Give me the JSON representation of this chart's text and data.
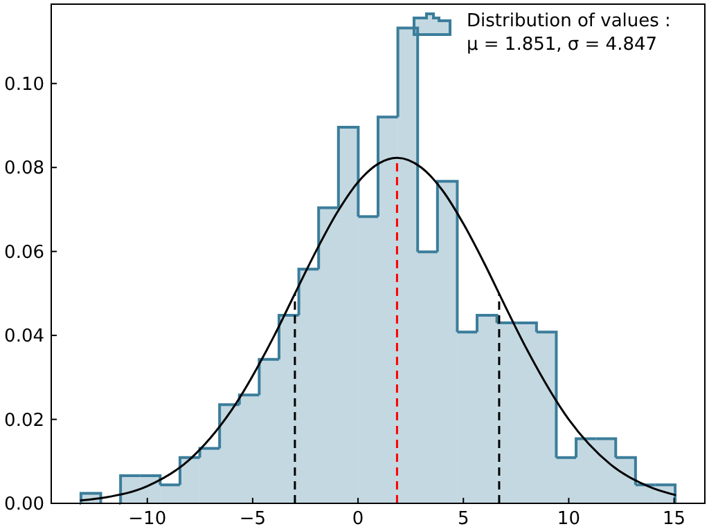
{
  "chart_data": {
    "type": "histogram",
    "bins": [
      -13.15,
      -12.21,
      -11.27,
      -10.33,
      -9.39,
      -8.45,
      -7.51,
      -6.57,
      -5.63,
      -4.69,
      -3.75,
      -2.81,
      -1.87,
      -0.93,
      0.01,
      0.95,
      1.89,
      2.83,
      3.77,
      4.71,
      5.65,
      6.59,
      7.53,
      8.47,
      9.41,
      10.35,
      11.29,
      12.23,
      13.17,
      14.11,
      15.05
    ],
    "series": [
      {
        "name": "Distribution of values :\nμ = 1.851, σ = 4.847",
        "color": "#3b7d9b",
        "values": [
          0.0024,
          0,
          0.0066,
          0.0066,
          0.0044,
          0.0109,
          0.0131,
          0.0235,
          0.0258,
          0.0343,
          0.0448,
          0.0558,
          0.0704,
          0.0896,
          0.0683,
          0.092,
          0.1132,
          0.0599,
          0.0767,
          0.0408,
          0.0448,
          0.043,
          0.043,
          0.0408,
          0.0109,
          0.0154,
          0.0154,
          0.0109,
          0.0044,
          0.0044
        ]
      },
      {
        "type": "line",
        "color": "#000000",
        "x": [
          -13.15,
          -12,
          -10,
          -8,
          -6,
          -4,
          -3,
          -2,
          -1,
          0,
          1,
          1.851,
          3,
          4,
          5,
          6,
          7,
          8,
          10,
          12,
          14,
          15.05
        ],
        "values": [
          0.0007,
          0.0014,
          0.0041,
          0.0104,
          0.0222,
          0.0397,
          0.0499,
          0.06,
          0.0692,
          0.0765,
          0.081,
          0.0823,
          0.08,
          0.0746,
          0.0666,
          0.0571,
          0.0468,
          0.0368,
          0.02,
          0.0092,
          0.0036,
          0.002
        ]
      }
    ],
    "ref_lines": [
      {
        "axis": "x",
        "value": 1.851,
        "color": "#ff0000",
        "line_style": "dashed"
      },
      {
        "axis": "x",
        "value": -2.996,
        "color": "#000000",
        "line_style": "dashed"
      },
      {
        "axis": "x",
        "value": 6.698,
        "color": "#000000",
        "line_style": "dashed"
      }
    ],
    "xlim": [
      -14.56,
      16.46
    ],
    "ylim": [
      0,
      0.1189
    ],
    "xticks": [
      {
        "value": -10,
        "label": "−10"
      },
      {
        "value": -5,
        "label": "−5"
      },
      0,
      5,
      10,
      15
    ],
    "yticks": [
      {
        "value": 0,
        "label": "0.00"
      },
      {
        "value": 0.02,
        "label": "0.02"
      },
      {
        "value": 0.04,
        "label": "0.04"
      },
      {
        "value": 0.06,
        "label": "0.06"
      },
      {
        "value": 0.08,
        "label": "0.08"
      },
      {
        "value": 0.1,
        "label": "0.10"
      }
    ],
    "legend": "top right"
  }
}
